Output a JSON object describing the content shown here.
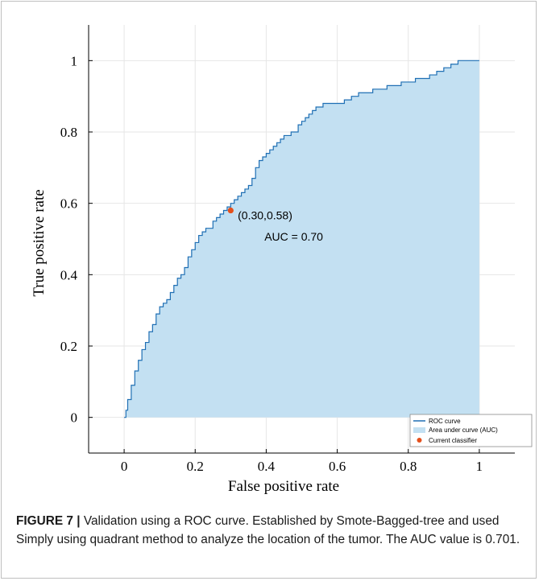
{
  "chart_data": {
    "type": "area",
    "xlabel": "False positive rate",
    "ylabel": "True positive rate",
    "xlim": [
      -0.1,
      1.1
    ],
    "ylim": [
      -0.1,
      1.1
    ],
    "xticks": [
      "0",
      "0.2",
      "0.4",
      "0.6",
      "0.8",
      "1"
    ],
    "xtick_values": [
      0,
      0.2,
      0.4,
      0.6,
      0.8,
      1
    ],
    "yticks": [
      "0",
      "0.2",
      "0.4",
      "0.6",
      "0.8",
      "1"
    ],
    "ytick_values": [
      0,
      0.2,
      0.4,
      0.6,
      0.8,
      1
    ],
    "grid": true,
    "legend_placement": "bottom-right",
    "series": [
      {
        "name": "ROC curve",
        "color": "#1f6fb4",
        "x": [
          0,
          0.005,
          0.01,
          0.02,
          0.03,
          0.04,
          0.05,
          0.06,
          0.07,
          0.08,
          0.09,
          0.1,
          0.11,
          0.12,
          0.13,
          0.14,
          0.15,
          0.16,
          0.17,
          0.18,
          0.19,
          0.2,
          0.21,
          0.22,
          0.23,
          0.24,
          0.25,
          0.26,
          0.27,
          0.28,
          0.29,
          0.3,
          0.31,
          0.32,
          0.33,
          0.34,
          0.35,
          0.36,
          0.37,
          0.38,
          0.39,
          0.4,
          0.41,
          0.42,
          0.43,
          0.44,
          0.45,
          0.46,
          0.47,
          0.48,
          0.49,
          0.5,
          0.51,
          0.52,
          0.53,
          0.54,
          0.55,
          0.56,
          0.57,
          0.58,
          0.59,
          0.6,
          0.62,
          0.64,
          0.66,
          0.68,
          0.7,
          0.72,
          0.74,
          0.76,
          0.78,
          0.8,
          0.82,
          0.84,
          0.86,
          0.88,
          0.9,
          0.92,
          0.94,
          0.96,
          0.98,
          1.0
        ],
        "y": [
          0,
          0.02,
          0.05,
          0.09,
          0.13,
          0.16,
          0.19,
          0.21,
          0.24,
          0.26,
          0.29,
          0.31,
          0.32,
          0.33,
          0.35,
          0.37,
          0.39,
          0.4,
          0.42,
          0.45,
          0.47,
          0.49,
          0.51,
          0.52,
          0.53,
          0.53,
          0.55,
          0.56,
          0.57,
          0.58,
          0.59,
          0.6,
          0.61,
          0.62,
          0.63,
          0.64,
          0.65,
          0.67,
          0.7,
          0.72,
          0.73,
          0.74,
          0.75,
          0.76,
          0.77,
          0.78,
          0.79,
          0.79,
          0.8,
          0.8,
          0.82,
          0.83,
          0.84,
          0.85,
          0.86,
          0.87,
          0.87,
          0.88,
          0.88,
          0.88,
          0.88,
          0.88,
          0.89,
          0.9,
          0.91,
          0.91,
          0.92,
          0.92,
          0.93,
          0.93,
          0.94,
          0.94,
          0.95,
          0.95,
          0.96,
          0.97,
          0.98,
          0.99,
          1.0,
          1.0,
          1.0,
          1.0
        ]
      },
      {
        "name": "Area under curve (AUC)",
        "color": "#c3e0f2"
      },
      {
        "name": "Current classifier",
        "color": "#e4501c",
        "x": [
          0.3
        ],
        "y": [
          0.58
        ]
      }
    ],
    "annotations": [
      {
        "text": "(0.30,0.58)",
        "x": 0.32,
        "y": 0.555
      },
      {
        "text": "AUC = 0.70",
        "x": 0.395,
        "y": 0.495
      }
    ]
  },
  "caption": {
    "label": "FIGURE 7 |",
    "text": " Validation using a ROC curve. Established by Smote-Bagged-tree and used Simply using quadrant method to analyze the location of the tumor. The AUC value is 0.701."
  }
}
